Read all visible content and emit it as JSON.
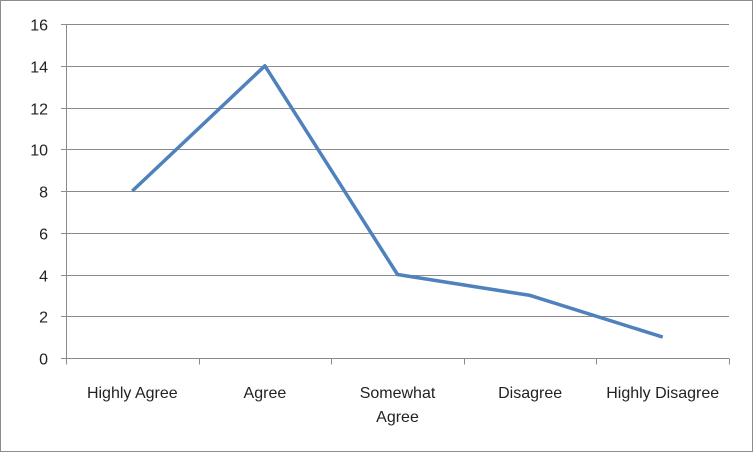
{
  "chart_data": {
    "type": "line",
    "categories": [
      [
        "Highly Agree"
      ],
      [
        "Agree"
      ],
      [
        "Somewhat",
        "Agree"
      ],
      [
        "Disagree"
      ],
      [
        "Highly Disagree"
      ]
    ],
    "series": [
      {
        "values": [
          8,
          14,
          4,
          3,
          1
        ],
        "color": "#4f81bd"
      }
    ],
    "ylim": [
      0,
      16
    ],
    "yticks": [
      0,
      2,
      4,
      6,
      8,
      10,
      12,
      14,
      16
    ],
    "grid": true,
    "legend": "none",
    "title": "",
    "xlabel": "",
    "ylabel": ""
  }
}
